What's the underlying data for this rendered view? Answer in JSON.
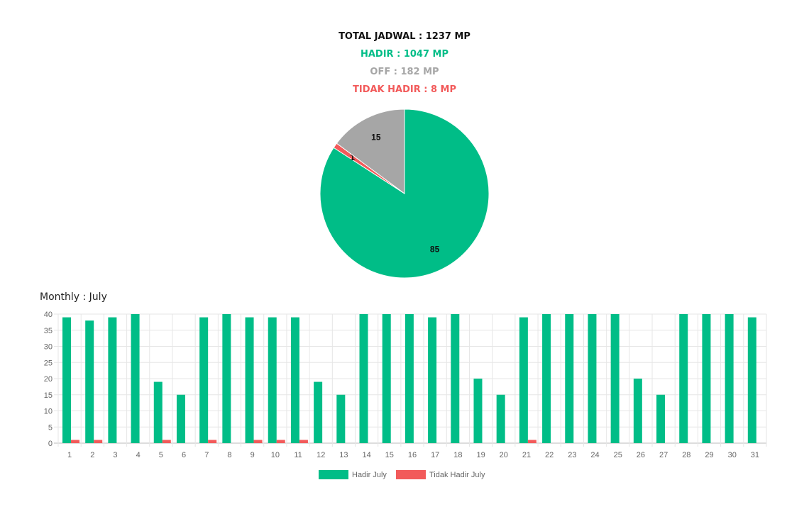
{
  "summary": {
    "total": "TOTAL JADWAL : 1237 MP",
    "hadir": "HADIR : 1047 MP",
    "off": "OFF : 182 MP",
    "tidak_hadir": "TIDAK HADIR : 8 MP"
  },
  "colors": {
    "hadir": "#00bd87",
    "off": "#a6a6a6",
    "tidak_hadir": "#f25a5a",
    "text_dark": "#111111",
    "grid": "#e6e6e6",
    "axis_text": "#666666"
  },
  "chart_data": [
    {
      "type": "pie",
      "title": "",
      "slices": [
        {
          "label": "85",
          "value": 85,
          "color": "#00bd87"
        },
        {
          "label": "1",
          "value": 1,
          "color": "#f25a5a"
        },
        {
          "label": "15",
          "value": 15,
          "color": "#a6a6a6"
        }
      ]
    },
    {
      "type": "bar",
      "title": "Monthly : July",
      "xlabel": "",
      "ylabel": "",
      "ylim": [
        0,
        40
      ],
      "yticks": [
        0,
        5,
        10,
        15,
        20,
        25,
        30,
        35,
        40
      ],
      "grid": true,
      "legend_position": "bottom",
      "categories": [
        "1",
        "2",
        "3",
        "4",
        "5",
        "6",
        "7",
        "8",
        "9",
        "10",
        "11",
        "12",
        "13",
        "14",
        "15",
        "16",
        "17",
        "18",
        "19",
        "20",
        "21",
        "22",
        "23",
        "24",
        "25",
        "26",
        "27",
        "28",
        "29",
        "30",
        "31"
      ],
      "series": [
        {
          "name": "Hadir July",
          "color": "#00bd87",
          "values": [
            39,
            38,
            39,
            40,
            19,
            15,
            39,
            40,
            39,
            39,
            39,
            19,
            15,
            40,
            40,
            40,
            39,
            40,
            20,
            15,
            39,
            40,
            40,
            40,
            40,
            20,
            15,
            40,
            40,
            40,
            39
          ]
        },
        {
          "name": "Tidak Hadir July",
          "color": "#f25a5a",
          "values": [
            1,
            1,
            0,
            0,
            1,
            0,
            1,
            0,
            1,
            1,
            1,
            0,
            0,
            0,
            0,
            0,
            0,
            0,
            0,
            0,
            1,
            0,
            0,
            0,
            0,
            0,
            0,
            0,
            0,
            0,
            0
          ]
        }
      ]
    }
  ]
}
